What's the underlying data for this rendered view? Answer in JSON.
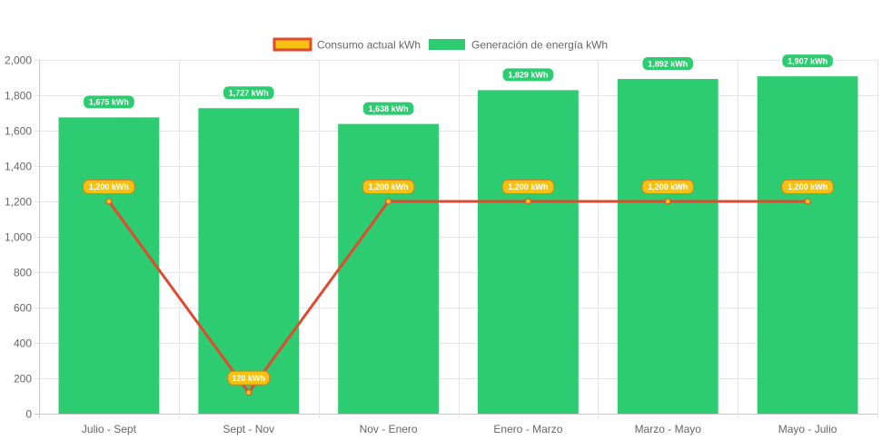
{
  "chart_data": {
    "type": "bar",
    "title": "",
    "xlabel": "",
    "ylabel": "",
    "categories": [
      "Julio - Sept",
      "Sept - Nov",
      "Nov - Enero",
      "Enero - Marzo",
      "Marzo - Mayo",
      "Mayo - Julio"
    ],
    "ylim": [
      0,
      2000
    ],
    "yticks": [
      0,
      200,
      400,
      600,
      800,
      1000,
      1200,
      1400,
      1600,
      1800,
      2000
    ],
    "ytick_labels": [
      "0",
      "200",
      "400",
      "600",
      "800",
      "1,000",
      "1,200",
      "1,400",
      "1,600",
      "1,800",
      "2,000"
    ],
    "grid": true,
    "legend_position": "top",
    "series": [
      {
        "name": "Consumo actual kWh",
        "type": "line",
        "values": [
          1200,
          120,
          1200,
          1200,
          1200,
          1200
        ],
        "data_labels": [
          "1,200 kWh",
          "120 kWh",
          "1,200 kWh",
          "1,200 kWh",
          "1,200 kWh",
          "1,200 kWh"
        ],
        "color": "#e04a2f",
        "fill_color": "#f5c211"
      },
      {
        "name": "Generación de energía kWh",
        "type": "bar",
        "values": [
          1675,
          1727,
          1638,
          1829,
          1892,
          1907
        ],
        "data_labels": [
          "1,675 kWh",
          "1,727 kWh",
          "1,638 kWh",
          "1,829 kWh",
          "1,892 kWh",
          "1,907 kWh"
        ],
        "color": "#2ecc71"
      }
    ]
  }
}
